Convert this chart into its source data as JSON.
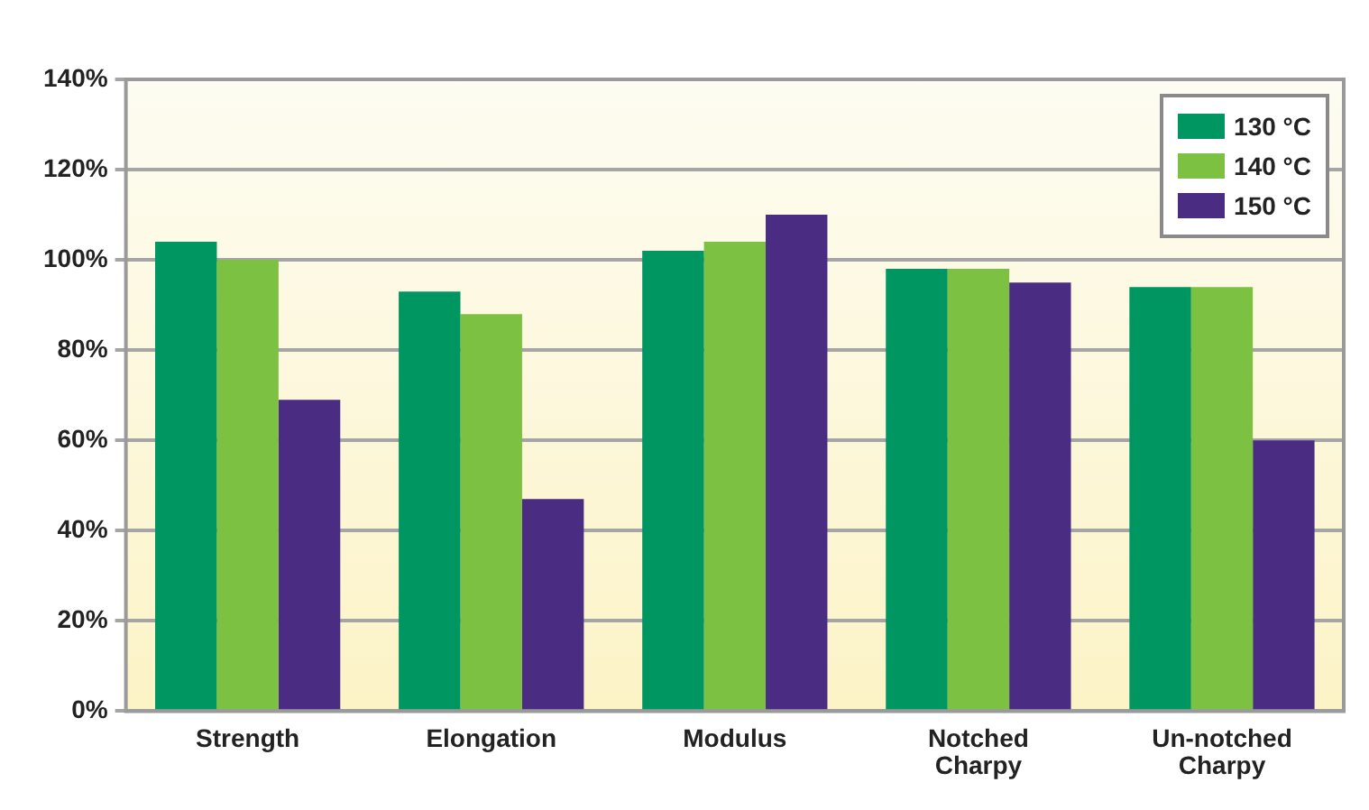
{
  "chart_data": {
    "type": "bar",
    "categories": [
      "Strength",
      "Elongation",
      "Modulus",
      "Notched Charpy",
      "Un-notched Charpy"
    ],
    "series": [
      {
        "name": "130 °C",
        "color": "#009661",
        "values": [
          104,
          93,
          102,
          98,
          94
        ]
      },
      {
        "name": "140 °C",
        "color": "#7cc142",
        "values": [
          100,
          88,
          104,
          98,
          94
        ]
      },
      {
        "name": "150 °C",
        "color": "#4a2c82",
        "values": [
          69,
          47,
          110,
          95,
          60
        ]
      }
    ],
    "ylim": [
      0,
      140
    ],
    "yticks": [
      {
        "value": 0,
        "label": "0%"
      },
      {
        "value": 20,
        "label": "20%"
      },
      {
        "value": 40,
        "label": "40%"
      },
      {
        "value": 60,
        "label": "60%"
      },
      {
        "value": 80,
        "label": "80%"
      },
      {
        "value": 100,
        "label": "100%"
      },
      {
        "value": 120,
        "label": "120%"
      },
      {
        "value": 140,
        "label": "140%"
      }
    ],
    "grid": "y",
    "legend": "top right"
  }
}
